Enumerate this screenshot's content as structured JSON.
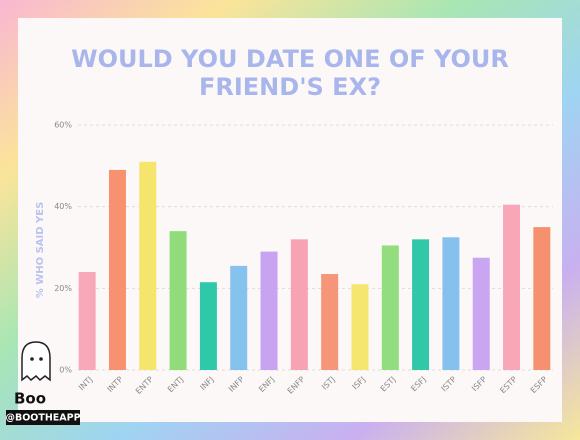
{
  "chart_data": {
    "type": "bar",
    "title": [
      "WOULD YOU DATE ONE OF YOUR",
      "FRIEND'S EX?"
    ],
    "y_label": "% WHO SAID YES",
    "categories": [
      "INTJ",
      "INTP",
      "ENTP",
      "ENTJ",
      "INFJ",
      "INFP",
      "ENFJ",
      "ENFP",
      "ISTJ",
      "ISFJ",
      "ESTJ",
      "ESFJ",
      "ISTP",
      "ISFP",
      "ESTP",
      "ESFP"
    ],
    "values": [
      24,
      49,
      51,
      34,
      21.5,
      25.5,
      29,
      32,
      23.5,
      21,
      30.5,
      32,
      32.5,
      27.5,
      40.5,
      35
    ],
    "colors": [
      "#f7a9ba",
      "#f7916f",
      "#f6e56c",
      "#90dc7b",
      "#2fc8a8",
      "#85c2ee",
      "#c7a3f2",
      "#f7a3b4",
      "#f69679",
      "#f5e66f",
      "#92dd7d",
      "#31c8a9",
      "#86c1ee",
      "#c9a5f2",
      "#f8a7b8",
      "#f5916f"
    ],
    "ylim": [
      0,
      60
    ],
    "yticks": [
      {
        "value": 0,
        "label": "0%"
      },
      {
        "value": 20,
        "label": "20%"
      },
      {
        "value": 40,
        "label": "40%"
      },
      {
        "value": 60,
        "label": "60%"
      }
    ],
    "grid": true
  },
  "brand": {
    "name": "Boo",
    "handle": "@BOOTHEAPP"
  }
}
